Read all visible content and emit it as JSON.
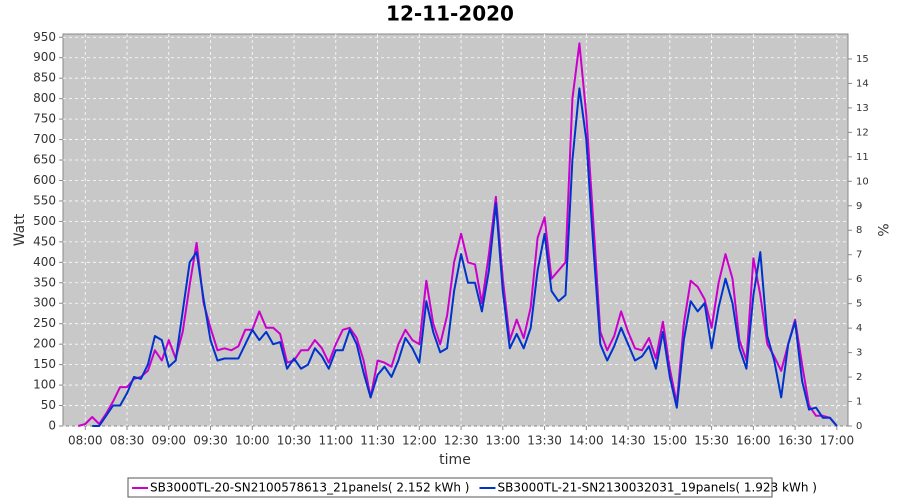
{
  "chart_data": {
    "type": "line",
    "title": "12-11-2020",
    "x_label": "time",
    "y_label": "Watt",
    "y2_label": "%",
    "x": [
      "07:55",
      "08:00",
      "08:05",
      "08:10",
      "08:15",
      "08:20",
      "08:25",
      "08:30",
      "08:35",
      "08:40",
      "08:45",
      "08:50",
      "08:55",
      "09:00",
      "09:05",
      "09:10",
      "09:15",
      "09:20",
      "09:25",
      "09:30",
      "09:35",
      "09:40",
      "09:45",
      "09:50",
      "09:55",
      "10:00",
      "10:05",
      "10:10",
      "10:15",
      "10:20",
      "10:25",
      "10:30",
      "10:35",
      "10:40",
      "10:45",
      "10:50",
      "10:55",
      "11:00",
      "11:05",
      "11:10",
      "11:15",
      "11:20",
      "11:25",
      "11:30",
      "11:35",
      "11:40",
      "11:45",
      "11:50",
      "11:55",
      "12:00",
      "12:05",
      "12:10",
      "12:15",
      "12:20",
      "12:25",
      "12:30",
      "12:35",
      "12:40",
      "12:45",
      "12:50",
      "12:55",
      "13:00",
      "13:05",
      "13:10",
      "13:15",
      "13:20",
      "13:25",
      "13:30",
      "13:35",
      "13:40",
      "13:45",
      "13:50",
      "13:55",
      "14:00",
      "14:05",
      "14:10",
      "14:15",
      "14:20",
      "14:25",
      "14:30",
      "14:35",
      "14:40",
      "14:45",
      "14:50",
      "14:55",
      "15:00",
      "15:05",
      "15:10",
      "15:15",
      "15:20",
      "15:25",
      "15:30",
      "15:35",
      "15:40",
      "15:45",
      "15:50",
      "15:55",
      "16:00",
      "16:05",
      "16:10",
      "16:15",
      "16:20",
      "16:25",
      "16:30",
      "16:35",
      "16:40",
      "16:45",
      "16:50",
      "16:55",
      "17:00"
    ],
    "series": [
      {
        "name": "SB3000TL-20-SN2100578613_21panels( 2.152 kWh )",
        "color": "#cc00cc",
        "values": [
          0,
          5,
          22,
          5,
          30,
          60,
          95,
          95,
          115,
          120,
          135,
          185,
          160,
          210,
          165,
          230,
          345,
          448,
          300,
          240,
          185,
          190,
          185,
          195,
          235,
          235,
          280,
          240,
          240,
          225,
          155,
          160,
          185,
          185,
          210,
          190,
          155,
          200,
          235,
          240,
          215,
          160,
          70,
          160,
          155,
          145,
          200,
          235,
          210,
          200,
          355,
          250,
          200,
          270,
          400,
          470,
          400,
          395,
          300,
          420,
          560,
          360,
          210,
          260,
          215,
          290,
          460,
          510,
          360,
          380,
          400,
          800,
          935,
          760,
          500,
          230,
          185,
          220,
          280,
          230,
          190,
          185,
          215,
          165,
          255,
          140,
          55,
          250,
          355,
          340,
          310,
          240,
          350,
          420,
          360,
          210,
          160,
          410,
          320,
          200,
          170,
          135,
          200,
          260,
          150,
          50,
          25,
          25,
          20,
          0
        ]
      },
      {
        "name": "SB3000TL-21-SN2130032031_19panels( 1.923 kWh )",
        "color": "#0033cc",
        "values": [
          null,
          null,
          0,
          0,
          25,
          50,
          50,
          80,
          120,
          115,
          150,
          220,
          210,
          145,
          160,
          280,
          400,
          425,
          310,
          210,
          160,
          165,
          165,
          165,
          200,
          235,
          210,
          230,
          200,
          205,
          140,
          165,
          140,
          150,
          190,
          170,
          140,
          185,
          185,
          235,
          200,
          130,
          70,
          125,
          145,
          120,
          160,
          215,
          190,
          155,
          305,
          230,
          180,
          190,
          330,
          420,
          350,
          350,
          280,
          380,
          545,
          330,
          190,
          225,
          190,
          240,
          380,
          470,
          330,
          305,
          320,
          650,
          825,
          700,
          440,
          200,
          160,
          195,
          240,
          200,
          160,
          170,
          195,
          140,
          230,
          120,
          45,
          210,
          305,
          280,
          300,
          190,
          290,
          360,
          300,
          190,
          140,
          320,
          425,
          220,
          160,
          70,
          200,
          255,
          110,
          40,
          45,
          20,
          20,
          0
        ]
      }
    ],
    "xlim": [
      "07:44",
      "17:08"
    ],
    "xticks": [
      "08:00",
      "08:30",
      "09:00",
      "09:30",
      "10:00",
      "10:30",
      "11:00",
      "11:30",
      "12:00",
      "12:30",
      "13:00",
      "13:30",
      "14:00",
      "14:30",
      "15:00",
      "15:30",
      "16:00",
      "16:30",
      "17:00"
    ],
    "ylim": [
      0,
      958
    ],
    "yticks": [
      0,
      50,
      100,
      150,
      200,
      250,
      300,
      350,
      400,
      450,
      500,
      550,
      600,
      650,
      700,
      750,
      800,
      850,
      900,
      950
    ],
    "y2lim": [
      0,
      16.02
    ],
    "y2ticks": [
      0,
      1,
      2,
      3,
      4,
      5,
      6,
      7,
      8,
      9,
      10,
      11,
      12,
      13,
      14,
      15
    ],
    "grid": true,
    "legend": "bottom"
  }
}
